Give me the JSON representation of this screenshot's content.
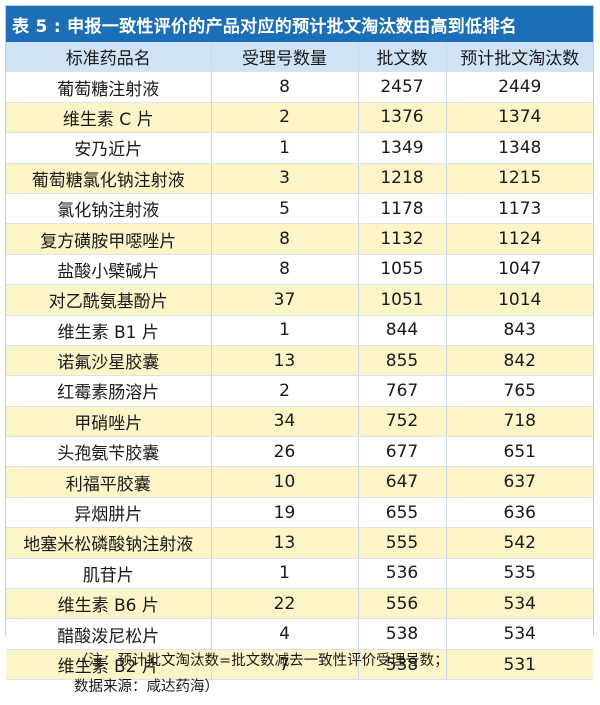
{
  "title": "表 5 : 申报一致性评价的产品对应的预计批文淘汰数由高到低排名",
  "columns": [
    "标准药品名",
    "受理号数量",
    "批文数",
    "预计批文淘汰数"
  ],
  "rows": [
    [
      "葡萄糖注射液",
      "8",
      "2457",
      "2449"
    ],
    [
      "维生素 C 片",
      "2",
      "1376",
      "1374"
    ],
    [
      "安乃近片",
      "1",
      "1349",
      "1348"
    ],
    [
      "葡萄糖氯化钠注射液",
      "3",
      "1218",
      "1215"
    ],
    [
      "氯化钠注射液",
      "5",
      "1178",
      "1173"
    ],
    [
      "复方磺胺甲噁唑片",
      "8",
      "1132",
      "1124"
    ],
    [
      "盐酸小檗碱片",
      "8",
      "1055",
      "1047"
    ],
    [
      "对乙酰氨基酚片",
      "37",
      "1051",
      "1014"
    ],
    [
      "维生素 B1 片",
      "1",
      "844",
      "843"
    ],
    [
      "诺氟沙星胶囊",
      "13",
      "855",
      "842"
    ],
    [
      "红霉素肠溶片",
      "2",
      "767",
      "765"
    ],
    [
      "甲硝唑片",
      "34",
      "752",
      "718"
    ],
    [
      "头孢氨苄胶囊",
      "26",
      "677",
      "651"
    ],
    [
      "利福平胶囊",
      "10",
      "647",
      "637"
    ],
    [
      "异烟肼片",
      "19",
      "655",
      "636"
    ],
    [
      "地塞米松磷酸钠注射液",
      "13",
      "555",
      "542"
    ],
    [
      "肌苷片",
      "1",
      "536",
      "535"
    ],
    [
      "维生素 B6 片",
      "22",
      "556",
      "534"
    ],
    [
      "醋酸泼尼松片",
      "4",
      "538",
      "534"
    ],
    [
      "维生素 B2 片",
      "7",
      "538",
      "531"
    ]
  ],
  "note": {
    "line1": "（注：预计批文淘汰数=批文数减去一致性评价受理号数；",
    "line2": "数据来源：咸达药海）"
  },
  "colors": {
    "title_bg": "#1c6fb6",
    "header_bg": "#cfe3f5",
    "stripe_bg": "#fdf4c8"
  }
}
